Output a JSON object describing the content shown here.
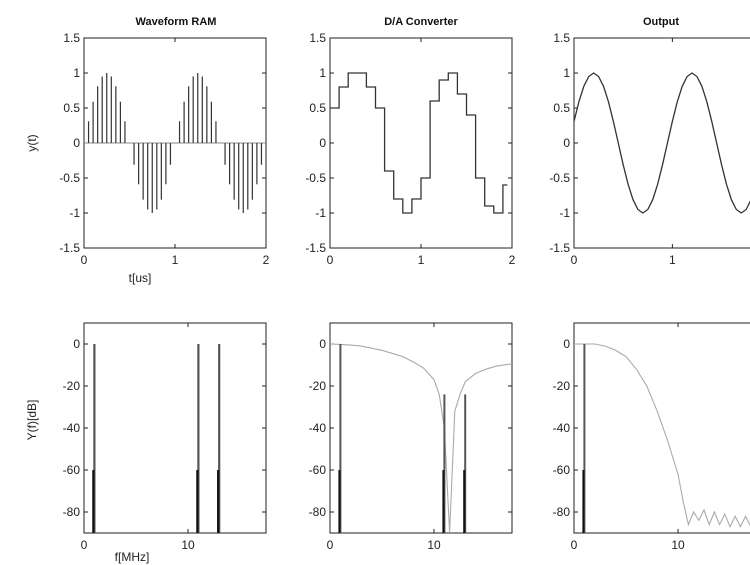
{
  "figure": {
    "background": "#ffffff",
    "axis_color": "#222222"
  },
  "chart_data": [
    {
      "id": "wave-ram-time",
      "type": "stem",
      "title": "Waveform RAM",
      "xlabel": "t[us]",
      "ylabel": "y(t)",
      "xlim": [
        0,
        2
      ],
      "ylim": [
        -1.5,
        1.5
      ],
      "xticks": [
        0,
        1,
        2
      ],
      "yticks": [
        1.5,
        1,
        0.5,
        0,
        -0.5,
        -1,
        -1.5
      ],
      "yticklabels": [
        "1.5",
        "1",
        "0.5",
        "0",
        "-0.5",
        "-1",
        "-1.5"
      ],
      "series": [
        {
          "x": [
            0.0,
            0.05,
            0.1,
            0.15,
            0.2,
            0.25,
            0.3,
            0.35,
            0.4,
            0.45,
            0.5,
            0.55,
            0.6,
            0.65,
            0.7,
            0.75,
            0.8,
            0.85,
            0.9,
            0.95,
            1.0,
            1.05,
            1.1,
            1.15,
            1.2,
            1.25,
            1.3,
            1.35,
            1.4,
            1.45,
            1.5,
            1.55,
            1.6,
            1.65,
            1.7,
            1.75,
            1.8,
            1.85,
            1.9,
            1.95
          ],
          "y": [
            0.0,
            0.31,
            0.59,
            0.81,
            0.95,
            1.0,
            0.95,
            0.81,
            0.59,
            0.31,
            0.0,
            -0.31,
            -0.59,
            -0.81,
            -0.95,
            -1.0,
            -0.95,
            -0.81,
            -0.59,
            -0.31,
            0.0,
            0.31,
            0.59,
            0.81,
            0.95,
            1.0,
            0.95,
            0.81,
            0.59,
            0.31,
            0.0,
            -0.31,
            -0.59,
            -0.81,
            -0.95,
            -1.0,
            -0.95,
            -0.81,
            -0.59,
            -0.31
          ]
        }
      ]
    },
    {
      "id": "dac-time",
      "type": "step",
      "title": "D/A Converter",
      "xlim": [
        0,
        2
      ],
      "ylim": [
        -1.5,
        1.5
      ],
      "xticks": [
        0,
        1,
        2
      ],
      "yticks": [
        1.5,
        1,
        0.5,
        0,
        -0.5,
        -1,
        -1.5
      ],
      "yticklabels": [
        "1.5",
        "1",
        "0.5",
        "0",
        "-0.5",
        "-1",
        "-1.5"
      ],
      "series": [
        {
          "x": [
            0.0,
            0.1,
            0.2,
            0.3,
            0.4,
            0.5,
            0.6,
            0.7,
            0.8,
            0.9,
            1.0,
            1.1,
            1.2,
            1.3,
            1.4,
            1.5,
            1.6,
            1.7,
            1.8,
            1.9
          ],
          "y": [
            0.5,
            0.8,
            1.0,
            1.0,
            0.8,
            0.5,
            -0.4,
            -0.8,
            -1.0,
            -0.8,
            -0.5,
            0.6,
            0.9,
            1.0,
            0.7,
            0.4,
            -0.5,
            -0.9,
            -1.0,
            -0.6
          ],
          "x_end": 1.95
        }
      ]
    },
    {
      "id": "output-time",
      "type": "line",
      "title": "Output",
      "xlim": [
        0,
        1.85
      ],
      "ylim": [
        -1.5,
        1.5
      ],
      "xticks": [
        0,
        1
      ],
      "yticks": [
        1.5,
        1,
        0.5,
        0,
        -0.5,
        -1,
        -1.5
      ],
      "yticklabels": [
        "1.5",
        "1",
        "0.5",
        "0",
        "-0.5",
        "-1",
        "-1.5"
      ],
      "series": [
        {
          "x": [
            0,
            0.05,
            0.1,
            0.15,
            0.2,
            0.25,
            0.3,
            0.35,
            0.4,
            0.45,
            0.5,
            0.55,
            0.6,
            0.65,
            0.7,
            0.75,
            0.8,
            0.85,
            0.9,
            0.95,
            1.0,
            1.05,
            1.1,
            1.15,
            1.2,
            1.25,
            1.3,
            1.35,
            1.4,
            1.45,
            1.5,
            1.55,
            1.6,
            1.65,
            1.7,
            1.75,
            1.8,
            1.85
          ],
          "y": [
            0.31,
            0.59,
            0.81,
            0.95,
            1.0,
            0.95,
            0.81,
            0.59,
            0.31,
            0.0,
            -0.31,
            -0.59,
            -0.81,
            -0.95,
            -1.0,
            -0.95,
            -0.81,
            -0.59,
            -0.31,
            0.0,
            0.31,
            0.59,
            0.81,
            0.95,
            1.0,
            0.95,
            0.81,
            0.59,
            0.31,
            0.0,
            -0.31,
            -0.59,
            -0.81,
            -0.95,
            -1.0,
            -0.95,
            -0.81,
            -0.59
          ]
        }
      ]
    },
    {
      "id": "wave-ram-freq",
      "type": "stem",
      "xlabel": "f[MHz]",
      "ylabel": "Y(f)[dB]",
      "xlim": [
        0,
        17.5
      ],
      "ylim": [
        -90,
        10
      ],
      "xticks": [
        0,
        10
      ],
      "yticks": [
        0,
        -20,
        -40,
        -60,
        -80
      ],
      "yticklabels": [
        "0",
        "-20",
        "-40",
        "-60",
        "-80"
      ],
      "series": [
        {
          "name": "",
          "x": [
            1,
            11,
            13
          ],
          "y": [
            0,
            0,
            0
          ]
        },
        {
          "name": "",
          "x": [
            0.9,
            10.9,
            12.9
          ],
          "y": [
            -60,
            -60,
            -60
          ]
        }
      ]
    },
    {
      "id": "dac-freq",
      "type": "line",
      "xlim": [
        0,
        17.5
      ],
      "ylim": [
        -90,
        10
      ],
      "xticks": [
        0,
        10
      ],
      "yticks": [
        0,
        -20,
        -40,
        -60,
        -80
      ],
      "yticklabels": [
        "0",
        "-20",
        "-40",
        "-60",
        "-80"
      ],
      "series": [
        {
          "name": "",
          "x": [
            0,
            1,
            2,
            3,
            4,
            5,
            6,
            7,
            8,
            9,
            10,
            10.5,
            11,
            11.5,
            12,
            12.5,
            13,
            14,
            15,
            16,
            17.5
          ],
          "y": [
            0,
            -0.2,
            -0.5,
            -1,
            -2,
            -3,
            -4.5,
            -6,
            -8.5,
            -11.5,
            -17,
            -24,
            -40,
            -90,
            -32,
            -24,
            -18,
            -14,
            -12,
            -10.5,
            -9.5
          ]
        }
      ],
      "stems": {
        "x": [
          1,
          11,
          13
        ],
        "y": [
          0,
          -24,
          -24
        ],
        "floor_x": [
          1,
          11,
          13
        ],
        "floor_y": [
          -60,
          -60,
          -60
        ]
      }
    },
    {
      "id": "output-freq",
      "type": "line",
      "xlim": [
        0,
        17.5
      ],
      "ylim": [
        -90,
        10
      ],
      "xticks": [
        0,
        10
      ],
      "yticks": [
        0,
        -20,
        -40,
        -60,
        -80
      ],
      "yticklabels": [
        "0",
        "-20",
        "-40",
        "-60",
        "-80"
      ],
      "series": [
        {
          "name": "",
          "x": [
            0,
            2,
            3,
            4,
            5,
            6,
            7,
            8,
            9,
            10,
            10.5,
            11,
            11.5,
            12,
            12.5,
            13,
            13.5,
            14,
            14.5,
            15,
            15.5,
            16,
            16.5,
            17,
            17.5
          ],
          "y": [
            0,
            0,
            -1,
            -3,
            -6,
            -12,
            -20,
            -32,
            -46,
            -62,
            -75,
            -86,
            -80,
            -84,
            -79,
            -86,
            -80,
            -86,
            -81,
            -87,
            -82,
            -87,
            -82,
            -87,
            -83
          ]
        }
      ],
      "stems": {
        "x": [
          1
        ],
        "y": [
          0
        ],
        "floor_x": [
          1
        ],
        "floor_y": [
          -60
        ]
      }
    }
  ]
}
